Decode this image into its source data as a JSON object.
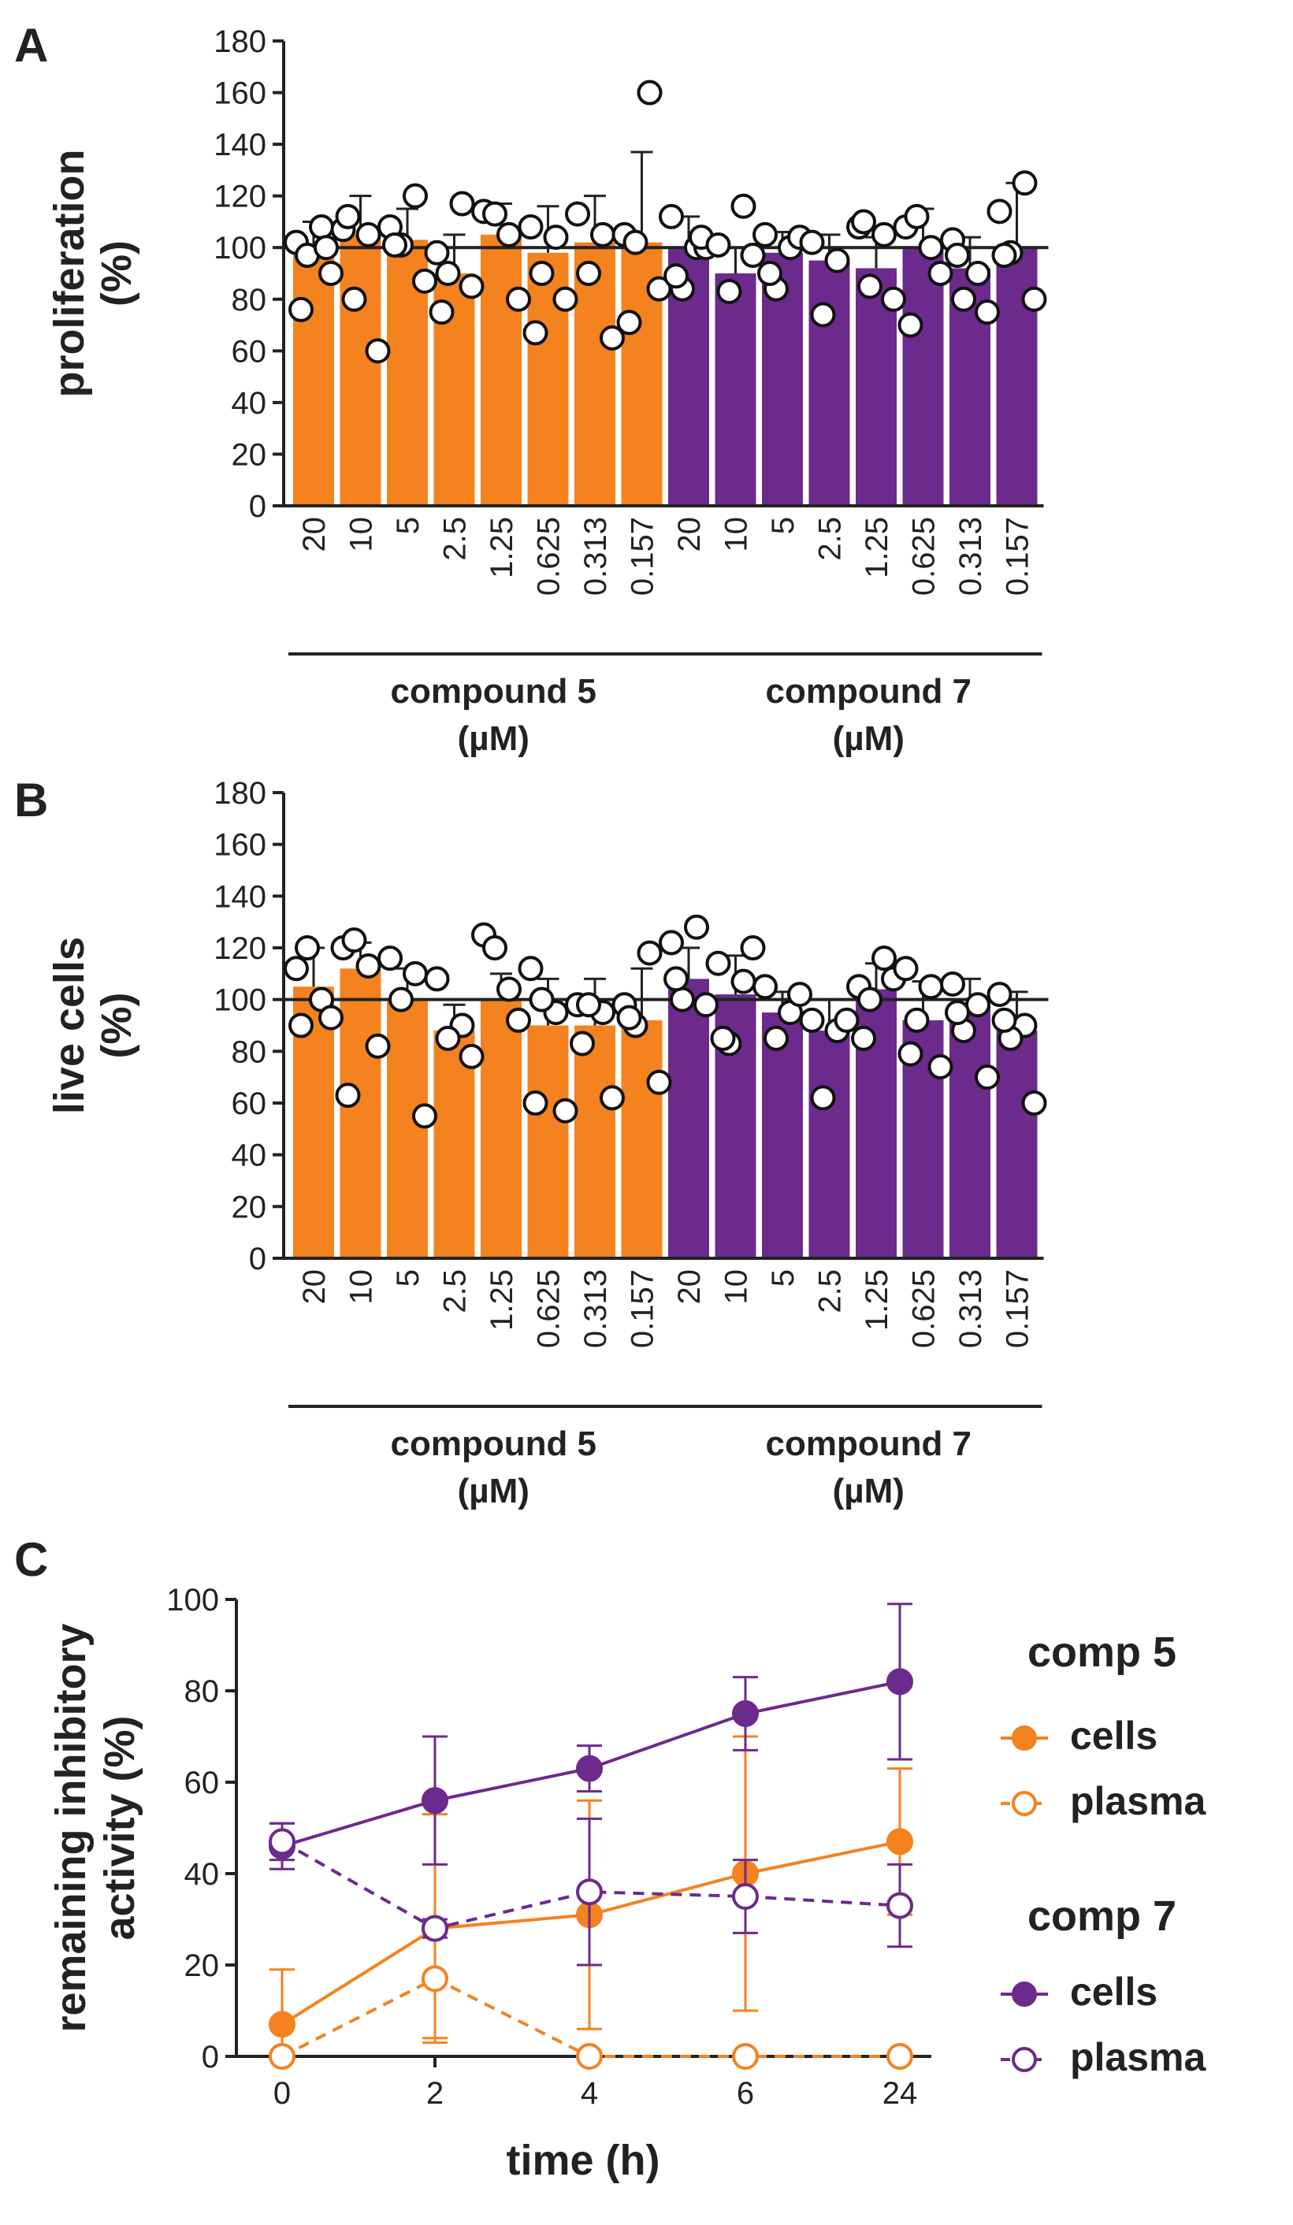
{
  "chart_data": [
    {
      "panel": "A",
      "type": "bar",
      "ylabel_line1": "proliferation",
      "ylabel_line2": "(%)",
      "ylim": [
        0,
        180
      ],
      "yticks": [
        0,
        20,
        40,
        60,
        80,
        100,
        120,
        140,
        160,
        180
      ],
      "reference_line": 100,
      "categories": [
        "20",
        "10",
        "5",
        "2.5",
        "1.25",
        "0.625",
        "0.313",
        "0.157"
      ],
      "groups": [
        {
          "name": "compound 5",
          "unit": "(µM)",
          "color": "#F4821F",
          "means": [
            100,
            105,
            103,
            90,
            105,
            98,
            102,
            102
          ],
          "sd": [
            10,
            15,
            12,
            15,
            12,
            18,
            18,
            35
          ],
          "points": [
            [
              102,
              108,
              97,
              90,
              76,
              100
            ],
            [
              107,
              105,
              80,
              60,
              112
            ],
            [
              108,
              120,
              101,
              87,
              101
            ],
            [
              98,
              117,
              90,
              85,
              75
            ],
            [
              114,
              105,
              113,
              80
            ],
            [
              108,
              104,
              90,
              80,
              67
            ],
            [
              113,
              105,
              90,
              65
            ],
            [
              105,
              160,
              102,
              84,
              71
            ]
          ]
        },
        {
          "name": "compound 7",
          "unit": "(µM)",
          "color": "#6C2A8C",
          "means": [
            100,
            90,
            98,
            95,
            92,
            100,
            92,
            100
          ],
          "sd": [
            12,
            10,
            8,
            10,
            12,
            15,
            12,
            25
          ],
          "points": [
            [
              112,
              100,
              84,
              100,
              89,
              104
            ],
            [
              101,
              116,
              83,
              97
            ],
            [
              105,
              100,
              84,
              104,
              90
            ],
            [
              102,
              95,
              74
            ],
            [
              108,
              105,
              85,
              80,
              110
            ],
            [
              108,
              100,
              112,
              90,
              70
            ],
            [
              103,
              90,
              80,
              75,
              97
            ],
            [
              114,
              125,
              98,
              80,
              97
            ]
          ]
        }
      ]
    },
    {
      "panel": "B",
      "type": "bar",
      "ylabel_line1": "live cells",
      "ylabel_line2": "(%)",
      "ylim": [
        0,
        180
      ],
      "yticks": [
        0,
        20,
        40,
        60,
        80,
        100,
        120,
        140,
        160,
        180
      ],
      "reference_line": 100,
      "categories": [
        "20",
        "10",
        "5",
        "2.5",
        "1.25",
        "0.625",
        "0.313",
        "0.157"
      ],
      "groups": [
        {
          "name": "compound 5",
          "unit": "(µM)",
          "color": "#F4821F",
          "means": [
            105,
            112,
            100,
            88,
            100,
            90,
            90,
            92
          ],
          "sd": [
            15,
            10,
            12,
            10,
            10,
            18,
            18,
            20
          ],
          "points": [
            [
              112,
              100,
              120,
              93,
              90
            ],
            [
              120,
              113,
              123,
              82,
              63
            ],
            [
              116,
              110,
              100,
              55
            ],
            [
              108,
              90,
              85,
              78
            ],
            [
              125,
              104,
              120,
              92
            ],
            [
              112,
              95,
              100,
              57,
              60
            ],
            [
              98,
              95,
              98,
              62,
              83
            ],
            [
              98,
              118,
              90,
              68,
              93
            ]
          ]
        },
        {
          "name": "compound 7",
          "unit": "(µM)",
          "color": "#6C2A8C",
          "means": [
            108,
            102,
            95,
            88,
            104,
            92,
            98,
            88
          ],
          "sd": [
            12,
            15,
            8,
            12,
            10,
            15,
            10,
            15
          ],
          "points": [
            [
              122,
              128,
              100,
              98,
              108
            ],
            [
              114,
              107,
              83,
              120,
              85
            ],
            [
              105,
              95,
              85,
              102
            ],
            [
              92,
              88,
              62,
              92
            ],
            [
              105,
              116,
              100,
              108,
              85
            ],
            [
              112,
              105,
              92,
              74,
              79
            ],
            [
              106,
              98,
              88,
              70,
              95
            ],
            [
              102,
              90,
              85,
              60,
              92
            ]
          ]
        }
      ]
    },
    {
      "panel": "C",
      "type": "line",
      "ylabel_line1": "remaining inhibitory",
      "ylabel_line2": "activity (%)",
      "xlabel": "time (h)",
      "x": [
        "0",
        "2",
        "4",
        "6",
        "24"
      ],
      "ylim": [
        0,
        100
      ],
      "yticks": [
        0,
        20,
        40,
        60,
        80,
        100
      ],
      "legend_groups": [
        {
          "title": "comp 5",
          "color": "#F4821F"
        },
        {
          "title": "comp 7",
          "color": "#6C2A8C"
        }
      ],
      "series": [
        {
          "name": "cells",
          "compound": "comp 5",
          "color": "#F4821F",
          "style": "solid",
          "marker": "filled",
          "values": [
            7,
            28,
            31,
            40,
            47
          ],
          "err": [
            12,
            25,
            25,
            30,
            16
          ]
        },
        {
          "name": "plasma",
          "compound": "comp 5",
          "color": "#F4821F",
          "style": "dashed",
          "marker": "open",
          "values": [
            0,
            17,
            0,
            0,
            0
          ],
          "err": [
            0,
            13,
            0,
            0,
            0
          ]
        },
        {
          "name": "cells",
          "compound": "comp 7",
          "color": "#6C2A8C",
          "style": "solid",
          "marker": "filled",
          "values": [
            46,
            56,
            63,
            75,
            82
          ],
          "err": [
            5,
            14,
            5,
            8,
            17
          ]
        },
        {
          "name": "plasma",
          "compound": "comp 7",
          "color": "#6C2A8C",
          "style": "dashed",
          "marker": "open",
          "values": [
            47,
            28,
            36,
            35,
            33
          ],
          "err": [
            4,
            2,
            16,
            8,
            9
          ]
        }
      ]
    }
  ]
}
